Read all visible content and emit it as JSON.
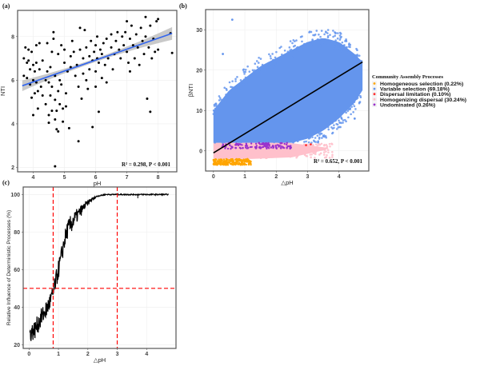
{
  "chart_data": [
    {
      "panel_label": "(a)",
      "type": "scatter",
      "xlabel": "pH",
      "ylabel": "NTI",
      "xlim": [
        3.5,
        8.6
      ],
      "ylim": [
        1.8,
        9.2
      ],
      "xticks": [
        4,
        5,
        6,
        7,
        8
      ],
      "yticks": [
        2,
        4,
        6,
        8
      ],
      "grid": true,
      "point_color": "#000000",
      "fit_color": "#3366EE",
      "ci_color": "#BBBBBB",
      "fit": {
        "slope": 0.5,
        "intercept": 3.92,
        "x_range": [
          3.65,
          8.45
        ]
      },
      "annotation": "R² = 0.298, P < 0.001",
      "points": [
        [
          3.7,
          7.0
        ],
        [
          3.7,
          6.2
        ],
        [
          3.75,
          7.5
        ],
        [
          3.8,
          6.8
        ],
        [
          3.8,
          6.1
        ],
        [
          3.85,
          7.4
        ],
        [
          3.85,
          6.9
        ],
        [
          3.9,
          5.8
        ],
        [
          3.9,
          6.5
        ],
        [
          3.95,
          5.2
        ],
        [
          3.95,
          7.3
        ],
        [
          4.0,
          6.7
        ],
        [
          4.0,
          6.0
        ],
        [
          4.0,
          4.4
        ],
        [
          4.05,
          5.4
        ],
        [
          4.05,
          6.4
        ],
        [
          4.1,
          7.6
        ],
        [
          4.1,
          6.8
        ],
        [
          4.1,
          5.9
        ],
        [
          4.15,
          4.7
        ],
        [
          4.15,
          5.5
        ],
        [
          4.2,
          6.5
        ],
        [
          4.2,
          7.7
        ],
        [
          4.25,
          5.7
        ],
        [
          4.3,
          6.9
        ],
        [
          4.3,
          5.3
        ],
        [
          4.4,
          6.0
        ],
        [
          4.4,
          4.9
        ],
        [
          4.45,
          7.7
        ],
        [
          4.45,
          6.4
        ],
        [
          4.5,
          5.9
        ],
        [
          4.5,
          4.4
        ],
        [
          4.5,
          4.05
        ],
        [
          4.55,
          5.3
        ],
        [
          4.55,
          6.6
        ],
        [
          4.6,
          7.3
        ],
        [
          4.6,
          5.7
        ],
        [
          4.6,
          4.6
        ],
        [
          4.65,
          7.9
        ],
        [
          4.65,
          8.2
        ],
        [
          4.7,
          6.2
        ],
        [
          4.7,
          5.1
        ],
        [
          4.7,
          4.2
        ],
        [
          4.7,
          2.05
        ],
        [
          4.75,
          3.75
        ],
        [
          4.75,
          4.6
        ],
        [
          4.8,
          5.5
        ],
        [
          4.8,
          7.2
        ],
        [
          4.8,
          3.65
        ],
        [
          4.85,
          6.0
        ],
        [
          4.85,
          4.9
        ],
        [
          4.9,
          7.6
        ],
        [
          4.9,
          5.8
        ],
        [
          4.95,
          4.1
        ],
        [
          4.95,
          4.7
        ],
        [
          5.0,
          6.8
        ],
        [
          5.0,
          7.4
        ],
        [
          5.05,
          4.8
        ],
        [
          5.05,
          5.4
        ],
        [
          5.1,
          6.4
        ],
        [
          5.15,
          3.8
        ],
        [
          5.2,
          7.1
        ],
        [
          5.2,
          6.6
        ],
        [
          5.25,
          7.8
        ],
        [
          5.3,
          7.3
        ],
        [
          5.35,
          6.2
        ],
        [
          5.4,
          6.7
        ],
        [
          5.45,
          5.7
        ],
        [
          5.45,
          3.2
        ],
        [
          5.5,
          7.4
        ],
        [
          5.5,
          8.4
        ],
        [
          5.55,
          5.15
        ],
        [
          5.6,
          7.0
        ],
        [
          5.6,
          6.3
        ],
        [
          5.65,
          8.3
        ],
        [
          5.7,
          7.5
        ],
        [
          5.7,
          6.0
        ],
        [
          5.75,
          5.6
        ],
        [
          5.8,
          7.1
        ],
        [
          5.8,
          6.5
        ],
        [
          5.85,
          7.8
        ],
        [
          5.9,
          3.85
        ],
        [
          5.9,
          6.9
        ],
        [
          5.95,
          7.3
        ],
        [
          6.0,
          7.6
        ],
        [
          6.0,
          6.4
        ],
        [
          6.0,
          5.7
        ],
        [
          6.05,
          8.0
        ],
        [
          6.05,
          7.0
        ],
        [
          6.1,
          4.55
        ],
        [
          6.1,
          6.8
        ],
        [
          6.15,
          7.4
        ],
        [
          6.2,
          6.1
        ],
        [
          6.2,
          7.2
        ],
        [
          6.25,
          7.7
        ],
        [
          6.3,
          6.7
        ],
        [
          6.35,
          5.9
        ],
        [
          6.35,
          7.9
        ],
        [
          6.4,
          7.0
        ],
        [
          6.5,
          8.1
        ],
        [
          6.5,
          7.5
        ],
        [
          6.55,
          6.5
        ],
        [
          6.6,
          7.2
        ],
        [
          6.65,
          7.8
        ],
        [
          6.7,
          8.2
        ],
        [
          6.75,
          7.4
        ],
        [
          6.8,
          7.0
        ],
        [
          6.85,
          8.0
        ],
        [
          6.9,
          7.6
        ],
        [
          6.95,
          8.2
        ],
        [
          7.0,
          8.7
        ],
        [
          7.0,
          7.3
        ],
        [
          7.05,
          6.8
        ],
        [
          7.1,
          7.9
        ],
        [
          7.1,
          6.4
        ],
        [
          7.15,
          8.5
        ],
        [
          7.2,
          7.6
        ],
        [
          7.25,
          7.0
        ],
        [
          7.3,
          8.1
        ],
        [
          7.35,
          7.5
        ],
        [
          7.4,
          6.7
        ],
        [
          7.45,
          8.4
        ],
        [
          7.5,
          7.8
        ],
        [
          7.55,
          7.2
        ],
        [
          7.6,
          8.9
        ],
        [
          7.6,
          8.0
        ],
        [
          7.65,
          5.15
        ],
        [
          7.7,
          7.5
        ],
        [
          7.75,
          4.55
        ],
        [
          7.75,
          8.5
        ],
        [
          7.8,
          7.0
        ],
        [
          7.85,
          7.9
        ],
        [
          7.9,
          7.3
        ],
        [
          7.95,
          8.7
        ],
        [
          8.0,
          7.4
        ],
        [
          8.0,
          8.8
        ],
        [
          8.4,
          8.15
        ],
        [
          8.45,
          7.25
        ]
      ]
    },
    {
      "panel_label": "(b)",
      "type": "scatter",
      "xlabel": "△pH",
      "ylabel": "βNTI",
      "xlim": [
        -0.25,
        4.95
      ],
      "ylim": [
        -5,
        35
      ],
      "xticks": [
        0,
        1,
        2,
        3,
        4
      ],
      "yticks": [
        0,
        10,
        20,
        30
      ],
      "grid": true,
      "fit": {
        "slope": 4.74,
        "intercept": -0.5,
        "x_range": [
          0,
          4.75
        ],
        "color": "#000000"
      },
      "annotation": "R² = 0.652, P < 0.001",
      "legend": {
        "title": "Community Assembly Processes",
        "placement": "right",
        "items": [
          {
            "label": "Homogeneous  selection (0.22%)",
            "color": "#FFA500",
            "percent": 0.22,
            "y_range": [
              -3.5,
              -2.0
            ],
            "x_range": [
              0,
              1.2
            ]
          },
          {
            "label": "Variable  selection (69.18%)",
            "color": "#6495ED",
            "percent": 69.18,
            "y_range": [
              2.0,
              30
            ],
            "x_range": [
              0,
              4.75
            ]
          },
          {
            "label": "Dispersal  limitation (0.10%)",
            "color": "#FF3030",
            "percent": 0.1,
            "y_range": [
              1,
              2
            ],
            "x_range": [
              2.5,
              3.2
            ]
          },
          {
            "label": "Homogenizing  dispersal (30.24%)",
            "color": "#FFC0CB",
            "percent": 30.24,
            "y_range": [
              -2.0,
              2.0
            ],
            "x_range": [
              0,
              3.8
            ]
          },
          {
            "label": "Undominated (0.26%)",
            "color": "#9932CC",
            "percent": 0.26,
            "y_range": [
              0.5,
              2.0
            ],
            "x_range": [
              0.2,
              2.5
            ]
          }
        ]
      },
      "variable_selection_envelope": {
        "x": [
          0,
          0.5,
          1,
          1.5,
          2,
          2.5,
          3,
          3.5,
          4,
          4.5,
          4.75
        ],
        "upper": [
          10,
          15,
          18,
          21,
          23,
          25,
          27,
          28,
          27,
          24,
          22
        ],
        "lower": [
          2,
          2,
          2,
          2,
          2,
          2,
          3,
          5,
          8,
          12,
          15
        ]
      },
      "outliers": [
        [
          0.6,
          32.5
        ],
        [
          0.3,
          24
        ],
        [
          4.5,
          8
        ]
      ]
    },
    {
      "panel_label": "(c)",
      "type": "line",
      "xlabel": "△pH",
      "ylabel": "Relative Influence of Deterministic Processes (%)",
      "xlim": [
        -0.2,
        5.0
      ],
      "ylim": [
        18,
        104
      ],
      "xticks": [
        0,
        1,
        2,
        3,
        4
      ],
      "yticks": [
        20,
        40,
        60,
        80,
        100
      ],
      "grid": true,
      "line_color": "#000000",
      "x": [
        0.02,
        0.2,
        0.4,
        0.6,
        0.8,
        0.9,
        1.0,
        1.1,
        1.2,
        1.3,
        1.5,
        1.7,
        1.9,
        2.1,
        2.3,
        2.6,
        3.0,
        3.7,
        4.75
      ],
      "y": [
        26,
        28,
        34,
        39,
        46,
        53,
        60,
        67,
        75,
        81,
        86,
        90,
        94,
        97,
        99,
        100,
        100,
        100,
        100
      ],
      "reference_lines": {
        "color": "#FF0000",
        "style": "dashed",
        "vertical_x": [
          0.82,
          3.0
        ],
        "horizontal_y": [
          50
        ]
      }
    }
  ]
}
